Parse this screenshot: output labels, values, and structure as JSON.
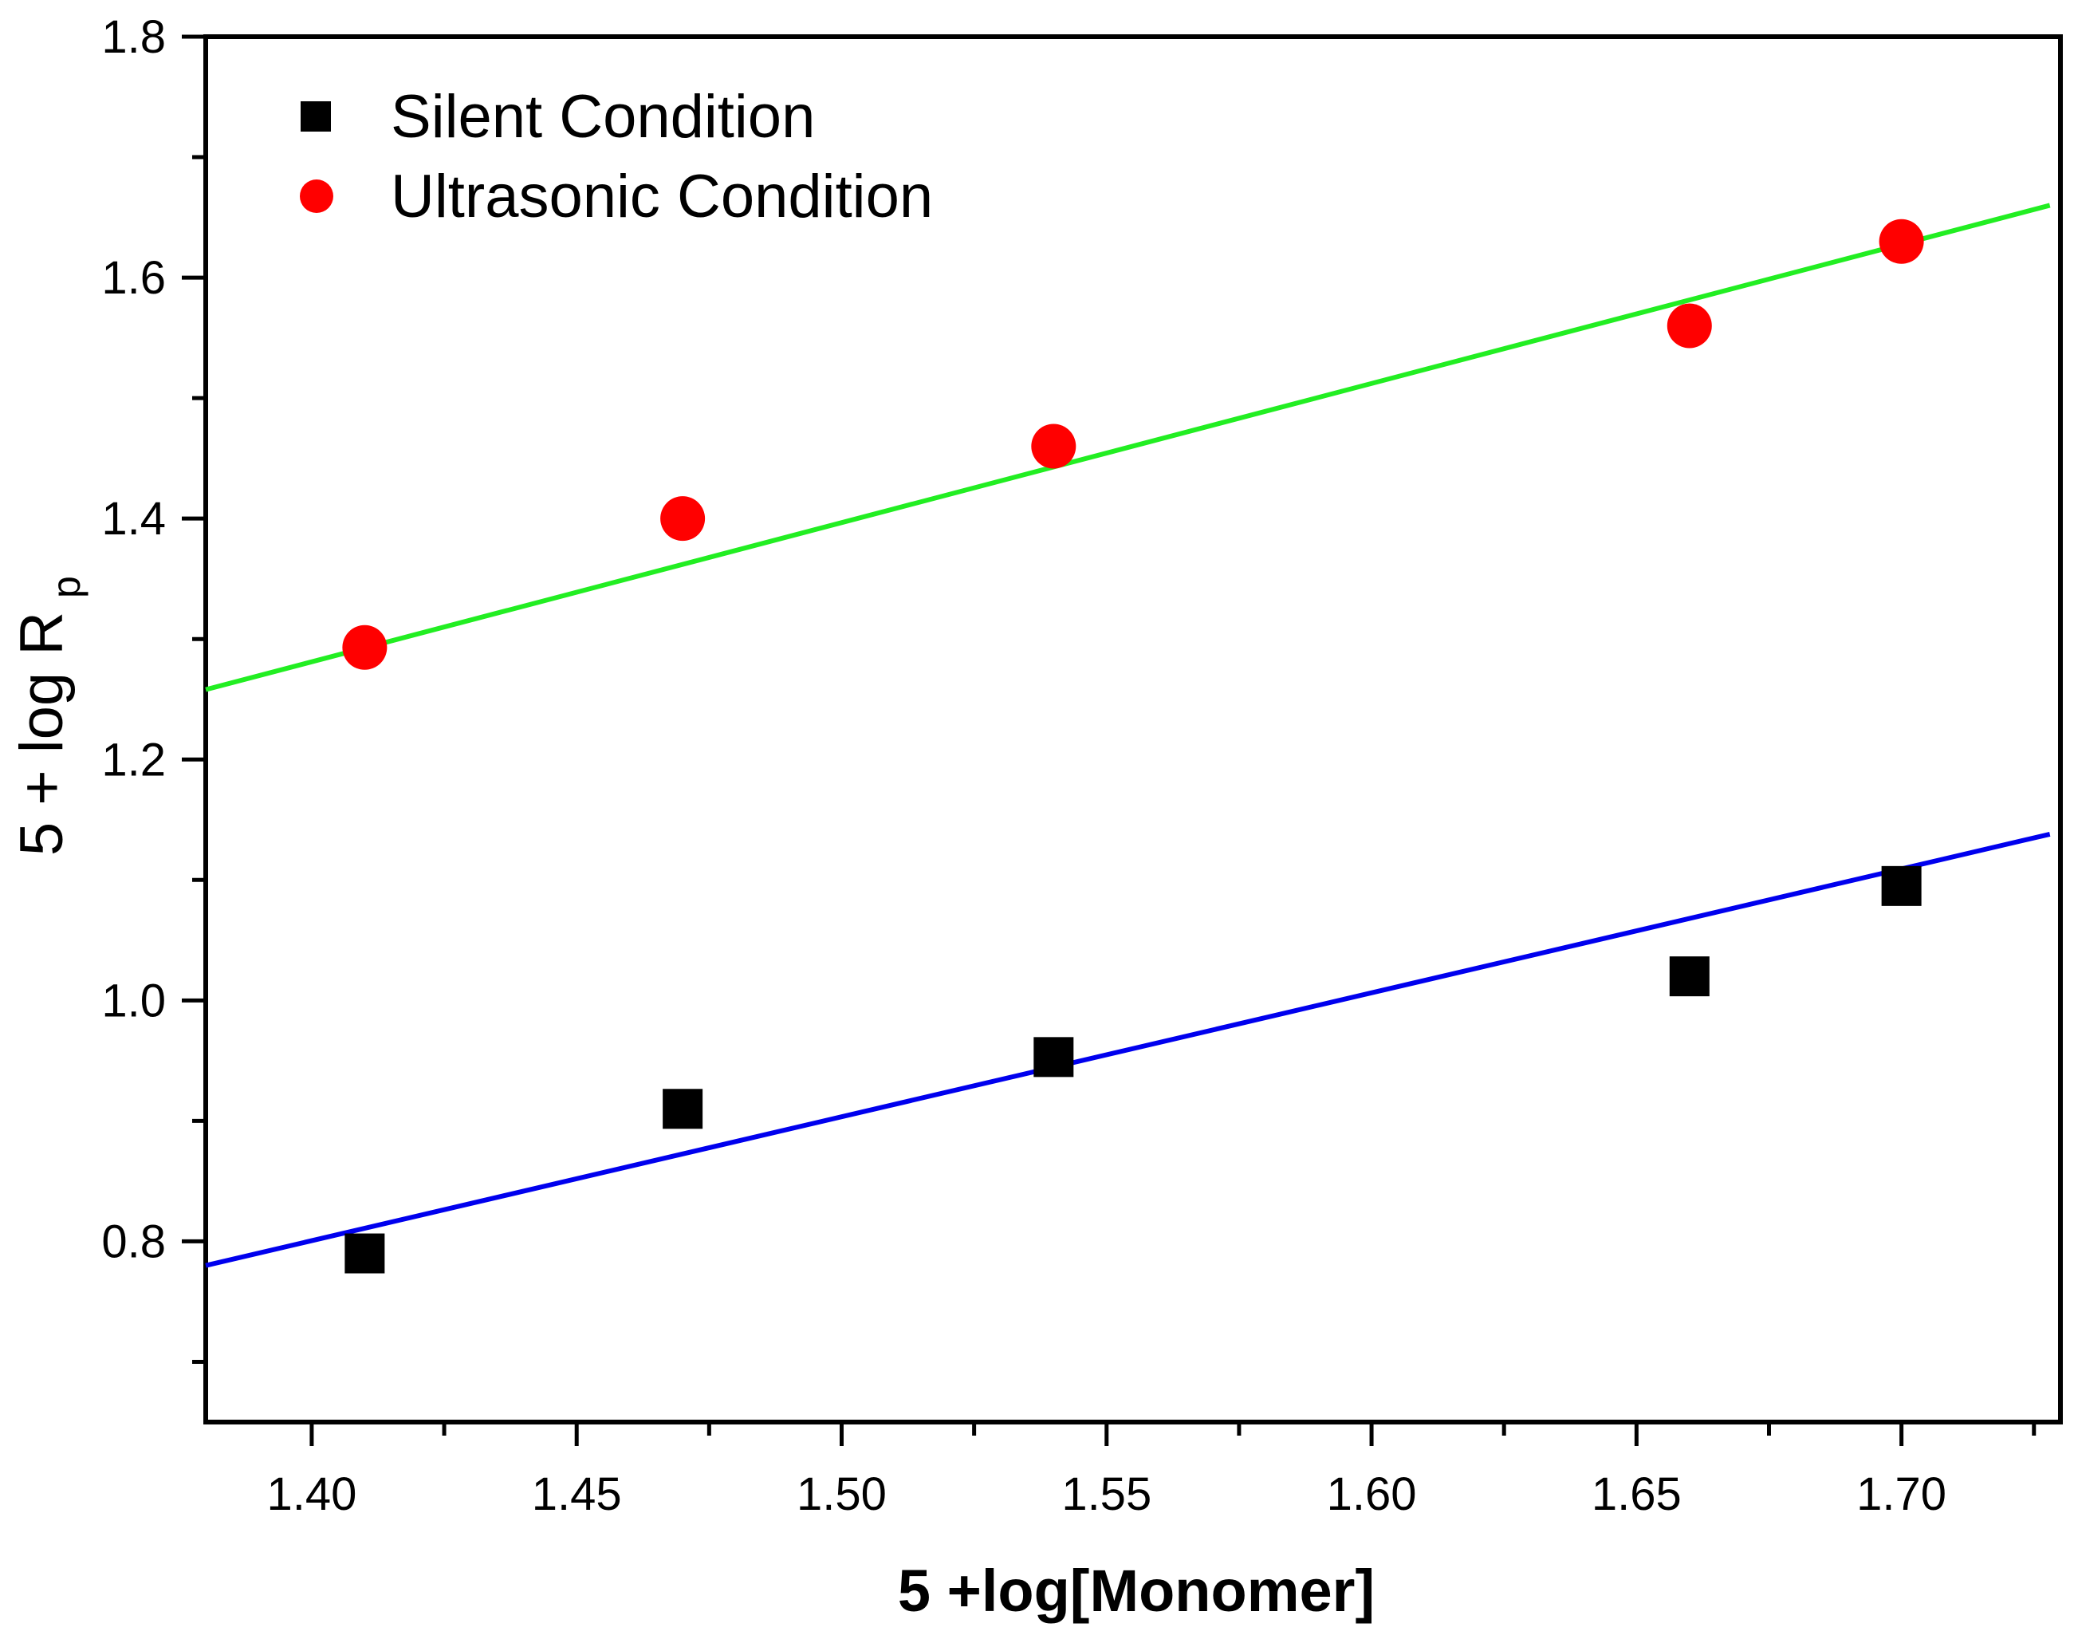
{
  "chart_data": {
    "type": "scatter",
    "title": "",
    "xlabel": "5 +log[Monomer]",
    "ylabel_main": "5 + log R",
    "ylabel_sub": "p",
    "xlim": [
      1.38,
      1.73
    ],
    "ylim": [
      0.65,
      1.8
    ],
    "x_ticks": [
      {
        "value": 1.4,
        "label": "1.40"
      },
      {
        "value": 1.45,
        "label": "1.45"
      },
      {
        "value": 1.5,
        "label": "1.50"
      },
      {
        "value": 1.55,
        "label": "1.55"
      },
      {
        "value": 1.6,
        "label": "1.60"
      },
      {
        "value": 1.65,
        "label": "1.65"
      },
      {
        "value": 1.7,
        "label": "1.70"
      }
    ],
    "y_ticks": [
      {
        "value": 0.8,
        "label": "0.8"
      },
      {
        "value": 1.0,
        "label": "1.0"
      },
      {
        "value": 1.2,
        "label": "1.2"
      },
      {
        "value": 1.4,
        "label": "1.4"
      },
      {
        "value": 1.6,
        "label": "1.6"
      },
      {
        "value": 1.8,
        "label": "1.8"
      }
    ],
    "grid": false,
    "legend_position": "top-left",
    "series": [
      {
        "name": "Silent Condition",
        "marker": "square",
        "color": "#000000",
        "x": [
          1.41,
          1.47,
          1.54,
          1.66,
          1.7
        ],
        "y": [
          0.79,
          0.91,
          0.953,
          1.02,
          1.095
        ],
        "fit": {
          "color": "#0000ee",
          "x": [
            1.38,
            1.728
          ],
          "y": [
            0.78,
            1.138
          ]
        }
      },
      {
        "name": "Ultrasonic Condition",
        "marker": "circle",
        "color": "#ff0000",
        "x": [
          1.41,
          1.47,
          1.54,
          1.66,
          1.7
        ],
        "y": [
          1.293,
          1.4,
          1.46,
          1.56,
          1.63
        ],
        "fit": {
          "color": "#22ee22",
          "x": [
            1.38,
            1.728
          ],
          "y": [
            1.258,
            1.66
          ]
        }
      }
    ]
  }
}
